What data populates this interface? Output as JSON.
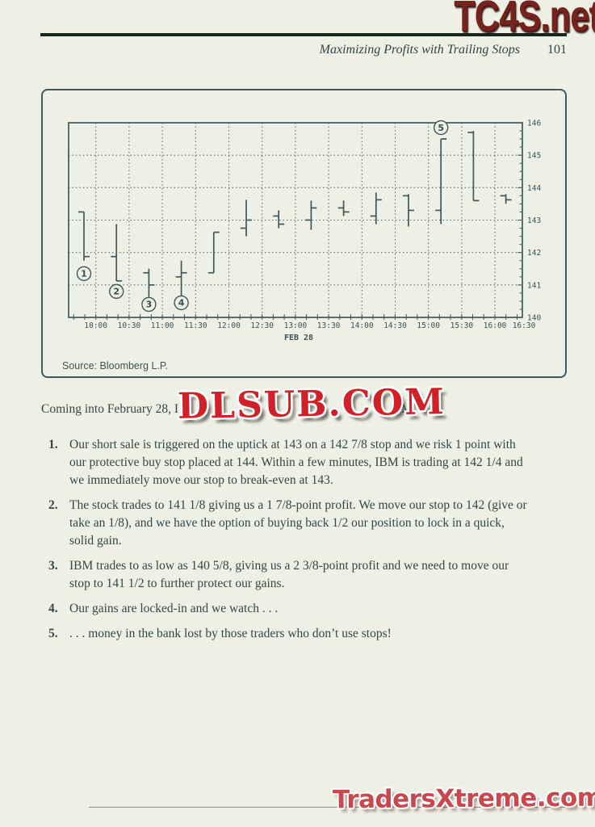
{
  "watermarks": {
    "top": "TC4S.net",
    "middle": "DLSUB.COM",
    "bottom": "TradersXtreme.com"
  },
  "header": {
    "running_title": "Maximizing Profits with Trailing Stops",
    "page_number": "101"
  },
  "figure": {
    "source": "Source: Bloomberg L.P."
  },
  "chart_data": {
    "type": "bar",
    "style": "open-high-low-close bars",
    "x_axis_label": "FEB 28",
    "x_tick_labels": [
      "10:00",
      "10:30",
      "11:00",
      "11:30",
      "12:00",
      "12:30",
      "13:00",
      "13:30",
      "14:00",
      "14:30",
      "15:00",
      "15:30",
      "16:00",
      "16:30"
    ],
    "ylim": [
      140,
      146
    ],
    "y_tick_labels": [
      "146",
      "145",
      "144",
      "143",
      "142",
      "141",
      "140"
    ],
    "grid": true,
    "legend_position": "none",
    "bars": [
      {
        "time": "09:45",
        "open": 143.25,
        "high": 143.25,
        "low": 141.75,
        "close": 141.875
      },
      {
        "time": "10:15",
        "open": 141.875,
        "high": 142.875,
        "low": 141.125,
        "close": 141.125
      },
      {
        "time": "10:45",
        "open": 141.375,
        "high": 141.5,
        "low": 140.625,
        "close": 141.0
      },
      {
        "time": "11:15",
        "open": 141.25,
        "high": 141.75,
        "low": 140.625,
        "close": 141.375
      },
      {
        "time": "11:45",
        "open": 141.375,
        "high": 142.625,
        "low": 141.375,
        "close": 142.625
      },
      {
        "time": "12:15",
        "open": 142.75,
        "high": 143.625,
        "low": 142.5,
        "close": 143.0
      },
      {
        "time": "12:45",
        "open": 143.125,
        "high": 143.3,
        "low": 142.75,
        "close": 142.875
      },
      {
        "time": "13:15",
        "open": 143.0,
        "high": 143.6,
        "low": 142.7,
        "close": 143.375
      },
      {
        "time": "13:45",
        "open": 143.375,
        "high": 143.6,
        "low": 143.125,
        "close": 143.25
      },
      {
        "time": "14:15",
        "open": 143.125,
        "high": 143.85,
        "low": 142.875,
        "close": 143.625
      },
      {
        "time": "14:45",
        "open": 143.75,
        "high": 143.8,
        "low": 142.8,
        "close": 143.3
      },
      {
        "time": "15:15",
        "open": 143.3,
        "high": 145.5,
        "low": 142.875,
        "close": 145.5
      },
      {
        "time": "15:45",
        "open": 145.7,
        "high": 145.75,
        "low": 143.6,
        "close": 143.6
      },
      {
        "time": "16:15",
        "open": 143.75,
        "high": 143.8,
        "low": 143.5,
        "close": 143.625
      }
    ],
    "annotations": [
      {
        "label": "1",
        "bar": 0,
        "price": 141.35
      },
      {
        "label": "2",
        "bar": 1,
        "price": 140.8
      },
      {
        "label": "3",
        "bar": 2,
        "price": 140.4
      },
      {
        "label": "4",
        "bar": 3,
        "price": 140.45
      },
      {
        "label": "5",
        "bar": 11,
        "price": 145.85
      }
    ]
  },
  "intro": {
    "visible_left": "Coming into February 28, I",
    "visible_right": "M."
  },
  "list": {
    "items": [
      {
        "num": "1.",
        "text": "Our short sale is triggered on the uptick at 143 on a 142 7/8 stop and we risk 1 point with our protective buy stop placed at 144. Within a few minutes, IBM is trading at 142 1/4 and we immediately move our stop to break-even at 143."
      },
      {
        "num": "2.",
        "text": "The stock trades to 141 1/8 giving us a 1 7/8-point profit. We move our stop to 142 (give or take an 1/8), and we have the option of buying back 1/2 our position to lock in a quick, solid gain."
      },
      {
        "num": "3.",
        "text": "IBM trades to as low as 140 5/8, giving us a 2 3/8-point profit and we need to move our stop to 141 1/2 to further protect our gains."
      },
      {
        "num": "4.",
        "text": "Our gains are locked-in and we watch . . ."
      },
      {
        "num": "5.",
        "text": ". . . money in the bank lost by those traders who don’t use stops!"
      }
    ]
  }
}
